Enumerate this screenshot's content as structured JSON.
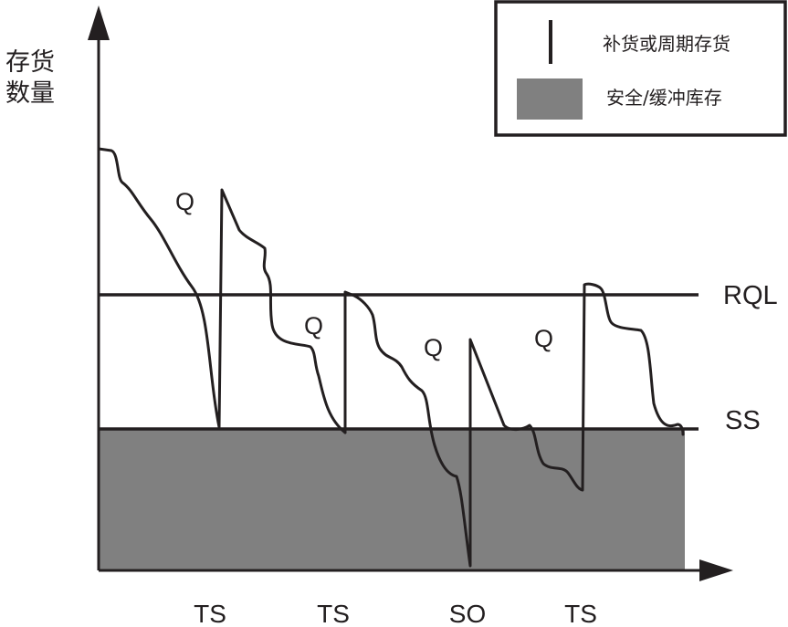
{
  "y_axis_label": [
    "存货",
    "数量"
  ],
  "legend": {
    "replenish_label": "补货或周期存货",
    "safety_label": "安全/缓冲库存"
  },
  "line_labels": {
    "rql": "RQL",
    "ss": "SS"
  },
  "q_labels": [
    "Q",
    "Q",
    "Q",
    "Q"
  ],
  "x_labels": [
    "TS",
    "TS",
    "SO",
    "TS"
  ],
  "colors": {
    "safety_fill": "#808080",
    "ink": "#231f20"
  }
}
